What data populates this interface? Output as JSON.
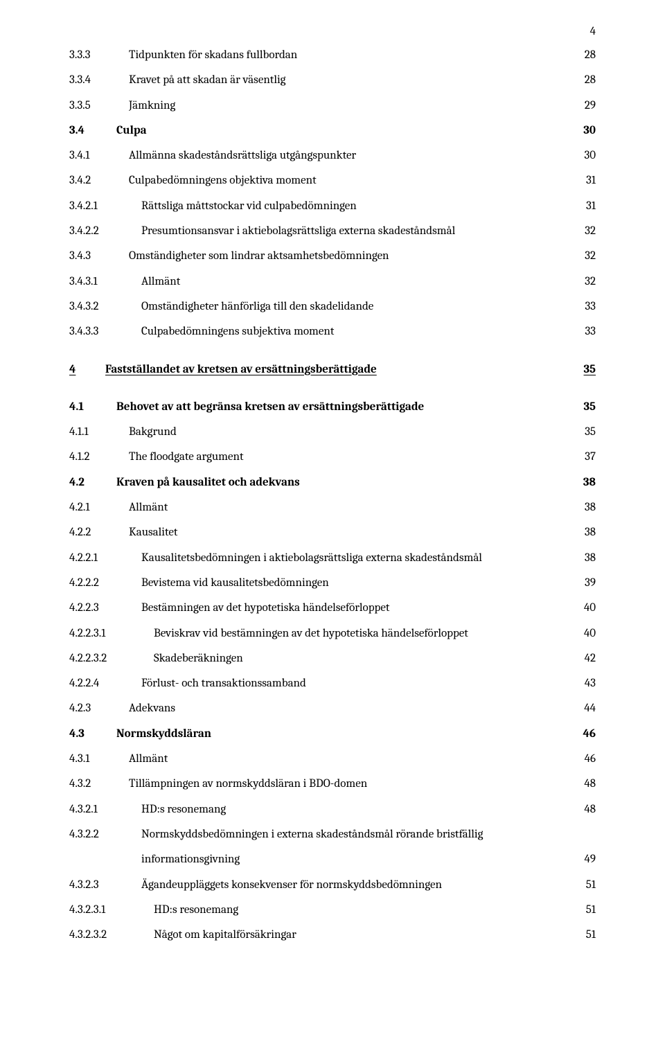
{
  "page_number": "4",
  "entries": [
    {
      "level": 3,
      "num": "3.3.3",
      "title": "Tidpunkten för skadans fullbordan",
      "page": "28",
      "bold": false
    },
    {
      "level": 3,
      "num": "3.3.4",
      "title": "Kravet på att skadan är väsentlig",
      "page": "28",
      "bold": false
    },
    {
      "level": 3,
      "num": "3.3.5",
      "title": "Jämkning",
      "page": "29",
      "bold": false
    },
    {
      "level": 2,
      "num": "3.4",
      "title": "Culpa",
      "page": "30",
      "bold": true
    },
    {
      "level": 3,
      "num": "3.4.1",
      "title": "Allmänna skadeståndsrättsliga utgångspunkter",
      "page": "30",
      "bold": false
    },
    {
      "level": 3,
      "num": "3.4.2",
      "title": "Culpabedömningens objektiva moment",
      "page": "31",
      "bold": false
    },
    {
      "level": 4,
      "num": "3.4.2.1",
      "title": "Rättsliga måttstockar vid culpabedömningen",
      "page": "31",
      "bold": false
    },
    {
      "level": 4,
      "num": "3.4.2.2",
      "title": "Presumtionsansvar i aktiebolagsrättsliga externa skadeståndsmål",
      "page": "32",
      "bold": false
    },
    {
      "level": 3,
      "num": "3.4.3",
      "title": "Omständigheter som lindrar aktsamhetsbedömningen",
      "page": "32",
      "bold": false
    },
    {
      "level": 4,
      "num": "3.4.3.1",
      "title": "Allmänt",
      "page": "32",
      "bold": false
    },
    {
      "level": 4,
      "num": "3.4.3.2",
      "title": "Omständigheter hänförliga till den skadelidande",
      "page": "33",
      "bold": false
    },
    {
      "level": 4,
      "num": "3.4.3.3",
      "title": "Culpabedömningens subjektiva moment",
      "page": "33",
      "bold": false
    },
    {
      "level": 1,
      "num": "4",
      "title": "Fastställandet av kretsen av ersättningsberättigade",
      "page": "35",
      "bold": true,
      "underline": true,
      "gap": true
    },
    {
      "level": 2,
      "num": "4.1",
      "title": "Behovet av att begränsa kretsen av ersättningsberättigade",
      "page": "35",
      "bold": true,
      "gap": true
    },
    {
      "level": 3,
      "num": "4.1.1",
      "title": "Bakgrund",
      "page": "35",
      "bold": false
    },
    {
      "level": 3,
      "num": "4.1.2",
      "title": "The floodgate argument",
      "page": "37",
      "bold": false
    },
    {
      "level": 2,
      "num": "4.2",
      "title": "Kraven på kausalitet och adekvans",
      "page": "38",
      "bold": true
    },
    {
      "level": 3,
      "num": "4.2.1",
      "title": "Allmänt",
      "page": "38",
      "bold": false
    },
    {
      "level": 3,
      "num": "4.2.2",
      "title": "Kausalitet",
      "page": "38",
      "bold": false
    },
    {
      "level": 4,
      "num": "4.2.2.1",
      "title": "Kausalitetsbedömningen i aktiebolagsrättsliga externa skadeståndsmål",
      "page": "38",
      "bold": false
    },
    {
      "level": 4,
      "num": "4.2.2.2",
      "title": "Bevistema vid kausalitetsbedömningen",
      "page": "39",
      "bold": false
    },
    {
      "level": 4,
      "num": "4.2.2.3",
      "title": "Bestämningen av det hypotetiska händelseförloppet",
      "page": "40",
      "bold": false
    },
    {
      "level": 5,
      "num": "4.2.2.3.1",
      "title": "Beviskrav vid bestämningen av det hypotetiska händelseförloppet",
      "page": "40",
      "bold": false
    },
    {
      "level": 5,
      "num": "4.2.2.3.2",
      "title": "Skadeberäkningen",
      "page": "42",
      "bold": false
    },
    {
      "level": 4,
      "num": "4.2.2.4",
      "title": "Förlust- och transaktionssamband",
      "page": "43",
      "bold": false
    },
    {
      "level": 3,
      "num": "4.2.3",
      "title": "Adekvans",
      "page": "44",
      "bold": false
    },
    {
      "level": 2,
      "num": "4.3",
      "title": "Normskyddsläran",
      "page": "46",
      "bold": true
    },
    {
      "level": 3,
      "num": "4.3.1",
      "title": "Allmänt",
      "page": "46",
      "bold": false
    },
    {
      "level": 3,
      "num": "4.3.2",
      "title": "Tillämpningen av normskyddsläran i BDO-domen",
      "page": "48",
      "bold": false
    },
    {
      "level": 4,
      "num": "4.3.2.1",
      "title": "HD:s resonemang",
      "page": "48",
      "bold": false
    },
    {
      "level": 4,
      "num": "4.3.2.2",
      "title": "Normskyddsbedömningen i externa skadeståndsmål rörande bristfällig",
      "page": "",
      "bold": false,
      "wrap_title2": "informationsgivning",
      "wrap_page": "49"
    },
    {
      "level": 4,
      "num": "4.3.2.3",
      "title": "Ägandeuppläggets konsekvenser för normskyddsbedömningen",
      "page": "51",
      "bold": false
    },
    {
      "level": 5,
      "num": "4.3.2.3.1",
      "title": "HD:s resonemang",
      "page": "51",
      "bold": false
    },
    {
      "level": 5,
      "num": "4.3.2.3.2",
      "title": "Något om kapitalförsäkringar",
      "page": "51",
      "bold": false
    }
  ]
}
